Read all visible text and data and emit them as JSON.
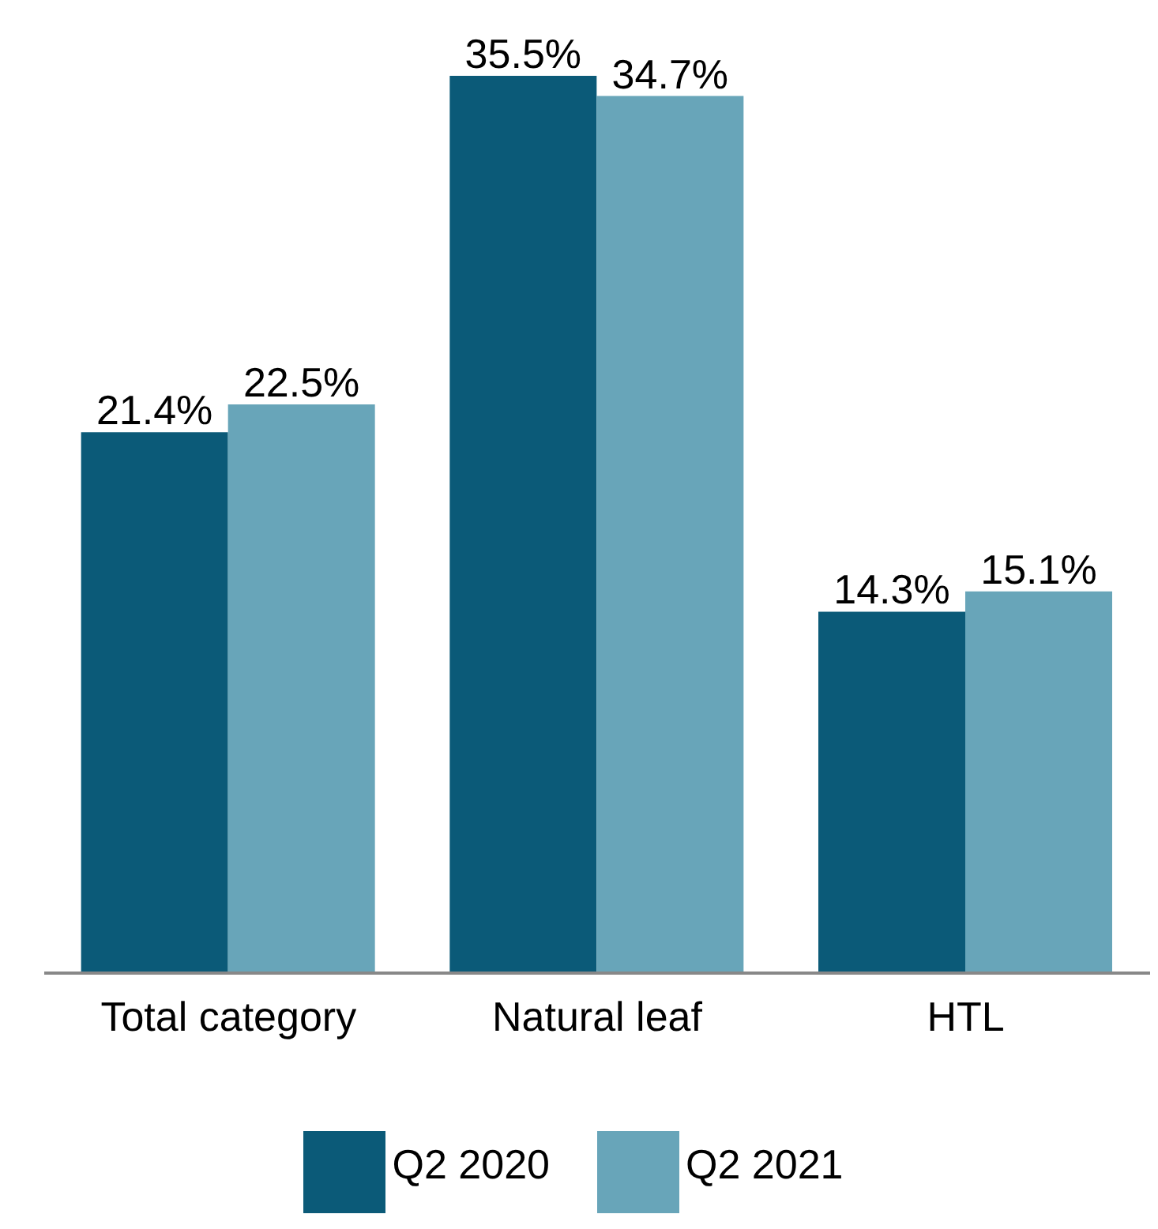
{
  "chart_data": {
    "type": "bar",
    "categories": [
      "Total category",
      "Natural leaf",
      "HTL"
    ],
    "series": [
      {
        "name": "Q2 2020",
        "color": "#0b5a78",
        "values": [
          21.4,
          35.5,
          14.3
        ],
        "value_labels": [
          "21.4%",
          "35.5%",
          "14.3%"
        ]
      },
      {
        "name": "Q2 2021",
        "color": "#68a5b9",
        "values": [
          22.5,
          34.7,
          15.1
        ],
        "value_labels": [
          "22.5%",
          "34.7%",
          "15.1%"
        ]
      }
    ],
    "legend": "bottom",
    "grid": false
  }
}
